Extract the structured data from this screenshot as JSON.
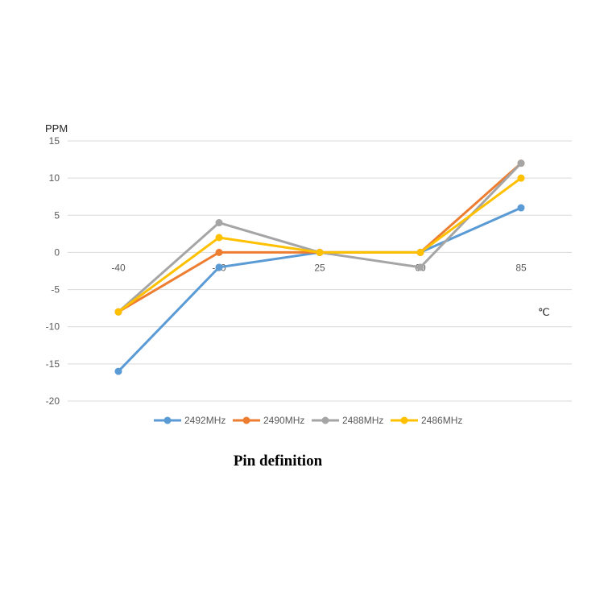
{
  "chart_data": {
    "type": "line",
    "ylabel": "PPM",
    "xlabel": "℃",
    "ylim": [
      -20,
      15
    ],
    "yticks": [
      "15",
      "10",
      "5",
      "0",
      "-5",
      "-10",
      "-15",
      "-20"
    ],
    "categories": [
      "-40",
      "-10",
      "25",
      "60",
      "85"
    ],
    "grid": true,
    "legend_position": "bottom",
    "series": [
      {
        "name": "2492MHz",
        "color": "#5b9bd5",
        "values": [
          -16,
          -2,
          0,
          0,
          6
        ]
      },
      {
        "name": "2490MHz",
        "color": "#ed7d31",
        "values": [
          -8,
          0,
          0,
          0,
          12
        ]
      },
      {
        "name": "2488MHz",
        "color": "#a5a5a5",
        "values": [
          -8,
          4,
          0,
          -2,
          12
        ]
      },
      {
        "name": "2486MHz",
        "color": "#ffc000",
        "values": [
          -8,
          2,
          0,
          0,
          10
        ]
      }
    ]
  },
  "caption": "Pin definition"
}
